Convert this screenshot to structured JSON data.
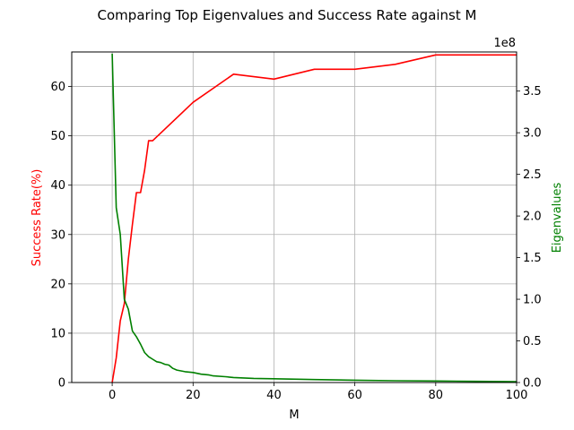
{
  "chart_data": {
    "type": "line",
    "title": "Comparing Top Eigenvalues and Success Rate against M",
    "xlabel": "M",
    "ylabel": "Success Rate(%)",
    "y2label": "Eigenvalues",
    "y2_offset_text": "1e8",
    "xlim": [
      -10,
      100
    ],
    "ylim": [
      0,
      67
    ],
    "y2lim": [
      0,
      3.97
    ],
    "grid": true,
    "x_ticks": [
      0,
      20,
      40,
      60,
      80,
      100
    ],
    "x_tick_labels": [
      "0",
      "20",
      "40",
      "60",
      "80",
      "100"
    ],
    "y_ticks": [
      0,
      10,
      20,
      30,
      40,
      50,
      60
    ],
    "y_tick_labels": [
      "0",
      "10",
      "20",
      "30",
      "40",
      "50",
      "60"
    ],
    "y2_ticks": [
      0,
      0.5,
      1.0,
      1.5,
      2.0,
      2.5,
      3.0,
      3.5
    ],
    "y2_tick_labels": [
      "0.0",
      "0.5",
      "1.0",
      "1.5",
      "2.0",
      "2.5",
      "3.0",
      "3.5"
    ],
    "colors": {
      "success": "#ff0000",
      "eigen": "#008000",
      "grid": "#b0b0b0"
    },
    "series": [
      {
        "axis": "left",
        "color": "#ff0000",
        "x": [
          0,
          1,
          2,
          3,
          4,
          5,
          6,
          7,
          8,
          9,
          10,
          20,
          30,
          40,
          50,
          60,
          70,
          80,
          90,
          100
        ],
        "y": [
          0,
          5,
          12.5,
          16,
          25,
          32,
          38.5,
          38.5,
          43,
          49,
          49,
          56.8,
          62.5,
          61.5,
          63.5,
          63.5,
          64.5,
          66.4,
          66.4,
          66.4
        ]
      },
      {
        "axis": "right",
        "color": "#008000",
        "x": [
          0,
          1,
          2,
          3,
          4,
          5,
          6,
          7,
          8,
          9,
          10,
          11,
          12,
          13,
          14,
          15,
          16,
          18,
          20,
          22,
          24,
          25,
          28,
          30,
          35,
          40,
          50,
          60,
          70,
          80,
          90,
          100
        ],
        "y": [
          3.95,
          2.1,
          1.78,
          1.0,
          0.88,
          0.62,
          0.55,
          0.46,
          0.36,
          0.31,
          0.28,
          0.25,
          0.24,
          0.22,
          0.21,
          0.17,
          0.15,
          0.13,
          0.12,
          0.1,
          0.09,
          0.08,
          0.07,
          0.06,
          0.05,
          0.045,
          0.035,
          0.028,
          0.022,
          0.018,
          0.014,
          0.01
        ]
      }
    ]
  }
}
